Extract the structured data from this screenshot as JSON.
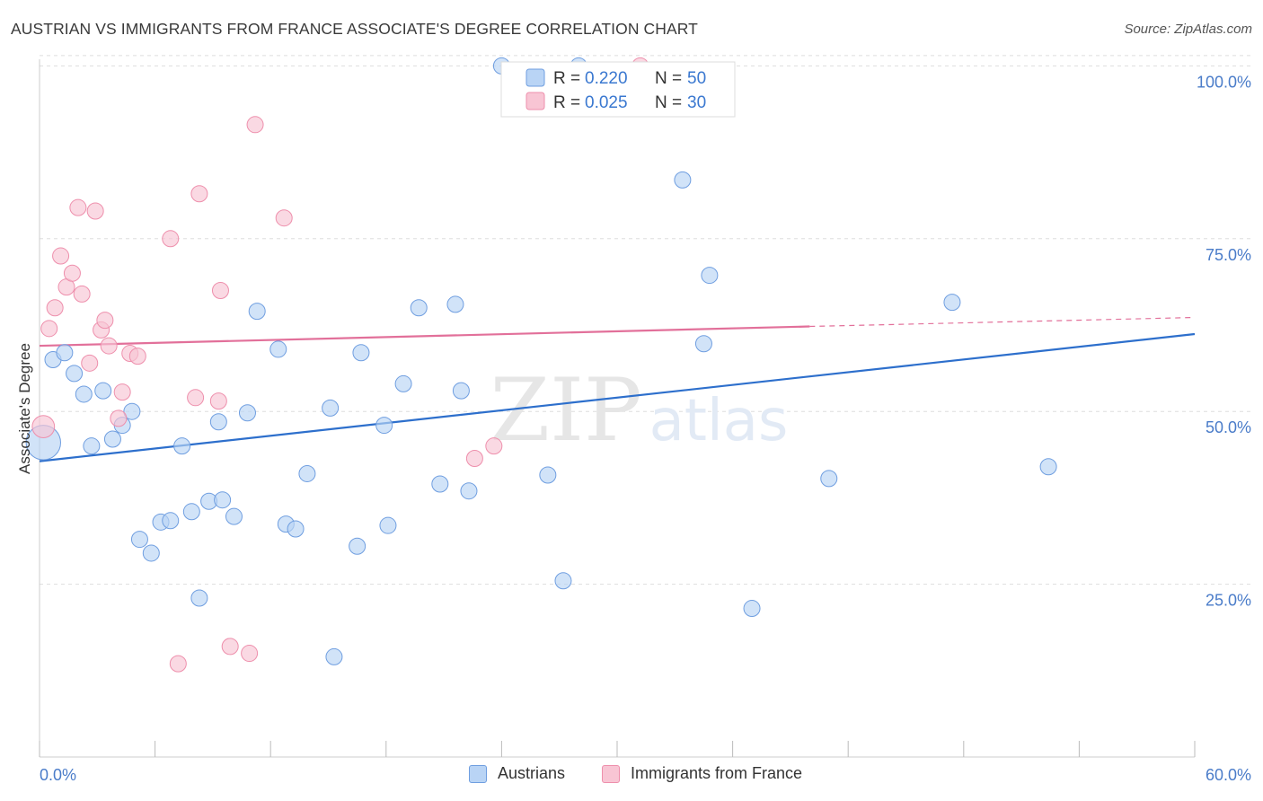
{
  "title": "AUSTRIAN VS IMMIGRANTS FROM FRANCE ASSOCIATE'S DEGREE CORRELATION CHART",
  "source": "Source: ZipAtlas.com",
  "watermark": {
    "zip": "ZIP",
    "atlas": "atlas"
  },
  "colors": {
    "blue_fill": "#b9d4f5",
    "blue_stroke": "#6f9ee0",
    "blue_line": "#2d6fcc",
    "pink_fill": "#f8c5d4",
    "pink_stroke": "#ee8fac",
    "pink_line": "#e2709a",
    "tick_label": "#4a7cc9",
    "grid": "#dddddd"
  },
  "legend_top": [
    {
      "r_label": "R = ",
      "r_value": "0.220",
      "n_label": "N = ",
      "n_value": "50",
      "series": "Austrians"
    },
    {
      "r_label": "R = ",
      "r_value": "0.025",
      "n_label": "N = ",
      "n_value": "30",
      "series": "Immigrants from France"
    }
  ],
  "legend_bottom": [
    "Austrians",
    "Immigrants from France"
  ],
  "chart_data": {
    "type": "scatter",
    "title": "AUSTRIAN VS IMMIGRANTS FROM FRANCE ASSOCIATE'S DEGREE CORRELATION CHART",
    "xlabel": "",
    "ylabel": "Associate's Degree",
    "xlim": [
      0,
      60
    ],
    "ylim": [
      0,
      102
    ],
    "x_tick_labels": [
      "0.0%",
      "60.0%"
    ],
    "y_ticks": [
      25,
      50,
      75,
      100
    ],
    "y_tick_labels": [
      "25.0%",
      "50.0%",
      "75.0%",
      "100.0%"
    ],
    "grid": true,
    "legend_position": "top-center",
    "series": [
      {
        "name": "Austrians",
        "points": [
          [
            0.7,
            57.5
          ],
          [
            1.3,
            58.5
          ],
          [
            1.8,
            55.5
          ],
          [
            2.3,
            52.5
          ],
          [
            2.7,
            45
          ],
          [
            3.3,
            53
          ],
          [
            3.8,
            46
          ],
          [
            4.3,
            48
          ],
          [
            4.8,
            50
          ],
          [
            5.2,
            31.5
          ],
          [
            5.8,
            29.5
          ],
          [
            6.3,
            34
          ],
          [
            6.8,
            34.2
          ],
          [
            7.4,
            45
          ],
          [
            7.9,
            35.5
          ],
          [
            8.3,
            23
          ],
          [
            8.8,
            37
          ],
          [
            9.3,
            48.5
          ],
          [
            9.5,
            37.2
          ],
          [
            10.1,
            34.8
          ],
          [
            10.8,
            49.8
          ],
          [
            11.3,
            64.5
          ],
          [
            12.4,
            59
          ],
          [
            12.8,
            33.7
          ],
          [
            13.3,
            33
          ],
          [
            13.9,
            41
          ],
          [
            15.1,
            50.5
          ],
          [
            15.3,
            14.5
          ],
          [
            16.5,
            30.5
          ],
          [
            16.7,
            58.5
          ],
          [
            17.9,
            48
          ],
          [
            18.1,
            33.5
          ],
          [
            18.9,
            54
          ],
          [
            19.7,
            65
          ],
          [
            20.8,
            39.5
          ],
          [
            21.6,
            65.5
          ],
          [
            21.9,
            53
          ],
          [
            22.3,
            38.5
          ],
          [
            24.0,
            100
          ],
          [
            26.4,
            40.8
          ],
          [
            27.2,
            25.5
          ],
          [
            28.0,
            100
          ],
          [
            33.4,
            83.5
          ],
          [
            34.5,
            59.8
          ],
          [
            34.8,
            69.7
          ],
          [
            37.0,
            21.5
          ],
          [
            41.0,
            40.3
          ],
          [
            47.4,
            65.8
          ],
          [
            52.4,
            42
          ],
          [
            0.2,
            45.5
          ]
        ],
        "sizes": [
          10,
          10,
          10,
          10,
          10,
          10,
          10,
          10,
          10,
          10,
          10,
          10,
          10,
          10,
          10,
          10,
          10,
          10,
          10,
          10,
          10,
          10,
          10,
          10,
          10,
          10,
          10,
          10,
          10,
          10,
          10,
          10,
          10,
          10,
          10,
          10,
          10,
          10,
          10,
          10,
          10,
          10,
          10,
          10,
          10,
          10,
          10,
          10,
          10,
          22
        ],
        "trend": {
          "x": [
            0,
            60
          ],
          "y": [
            42.8,
            61.2
          ]
        }
      },
      {
        "name": "Immigrants from France",
        "points": [
          [
            0.5,
            62
          ],
          [
            0.8,
            65
          ],
          [
            1.1,
            72.5
          ],
          [
            1.4,
            68
          ],
          [
            1.7,
            70
          ],
          [
            2.0,
            79.5
          ],
          [
            2.2,
            67
          ],
          [
            2.6,
            57
          ],
          [
            2.9,
            79
          ],
          [
            3.2,
            61.8
          ],
          [
            3.4,
            63.2
          ],
          [
            3.6,
            59.5
          ],
          [
            4.1,
            49
          ],
          [
            4.3,
            52.8
          ],
          [
            4.7,
            58.4
          ],
          [
            5.1,
            58
          ],
          [
            6.8,
            75
          ],
          [
            7.2,
            13.5
          ],
          [
            8.1,
            52
          ],
          [
            8.3,
            81.5
          ],
          [
            9.3,
            51.5
          ],
          [
            9.4,
            67.5
          ],
          [
            9.9,
            16
          ],
          [
            10.9,
            15
          ],
          [
            11.2,
            91.5
          ],
          [
            12.7,
            78
          ],
          [
            22.6,
            43.2
          ],
          [
            23.6,
            45
          ],
          [
            31.2,
            100
          ],
          [
            0.2,
            47.8
          ]
        ],
        "sizes": [
          10,
          10,
          10,
          10,
          10,
          10,
          10,
          10,
          10,
          10,
          10,
          10,
          10,
          10,
          10,
          10,
          10,
          10,
          10,
          10,
          10,
          10,
          10,
          10,
          10,
          10,
          10,
          10,
          10,
          14
        ],
        "trend": {
          "x": [
            0,
            40
          ],
          "y": [
            59.5,
            62.3
          ],
          "dashed_to": [
            60,
            63.6
          ]
        }
      }
    ]
  }
}
